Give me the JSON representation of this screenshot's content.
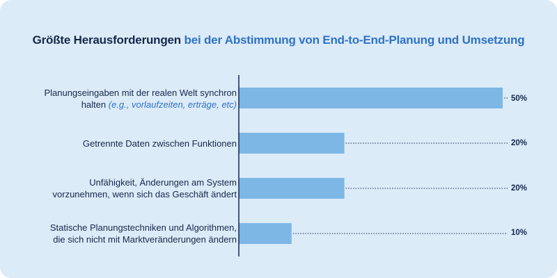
{
  "title": {
    "part1": "Größte Herausforderungen",
    "part2": "bei der Abstimmung von End-to-End-Planung und Umsetzung"
  },
  "colors": {
    "background": "#dcebf8",
    "bar": "#7db7e6",
    "text_dark": "#15284a",
    "accent": "#2e72c6"
  },
  "chart_data": {
    "type": "bar",
    "orientation": "horizontal",
    "categories": [
      "Planungseingaben mit der realen Welt synchron halten (e.g., vorlaufzeiten, erträge, etc)",
      "Getrennte Daten zwischen Funktionen",
      "Unfähigkeit, Änderungen am System vorzunehmen, wenn sich das Geschäft ändert",
      "Statische Planungstechniken und Algorithmen, die sich nicht mit Marktveränderungen ändern"
    ],
    "values": [
      50,
      20,
      20,
      10
    ],
    "value_labels": [
      "50%",
      "20%",
      "20%",
      "10%"
    ],
    "unit": "%",
    "xlim": [
      0,
      50
    ],
    "grid": false,
    "legend": "none"
  },
  "labels": [
    {
      "line1": "Planungseingaben mit der realen Welt synchron",
      "line2_prefix": "halten ",
      "line2_note": "(e.g., vorlaufzeiten, erträge, etc)"
    },
    {
      "line1": "Getrennte Daten zwischen Funktionen"
    },
    {
      "line1": "Unfähigkeit, Änderungen am System",
      "line2": "vorzunehmen, wenn sich das Geschäft ändert"
    },
    {
      "line1": "Statische Planungstechniken und Algorithmen,",
      "line2": "die sich nicht mit Marktveränderungen ändern"
    }
  ]
}
